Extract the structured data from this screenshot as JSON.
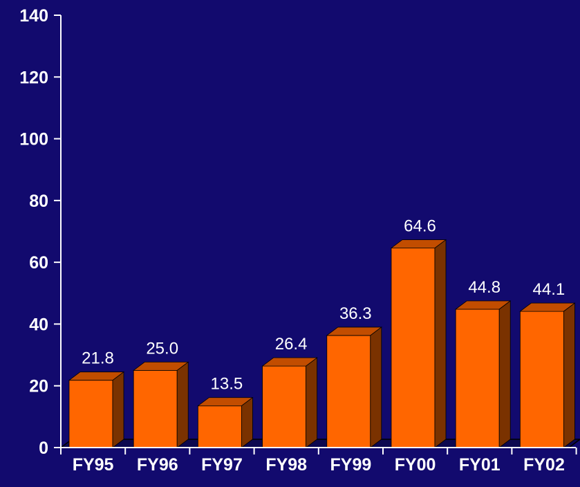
{
  "chart_data": {
    "type": "bar",
    "title": "",
    "xlabel": "",
    "ylabel": "",
    "categories": [
      "FY95",
      "FY96",
      "FY97",
      "FY98",
      "FY99",
      "FY00",
      "FY01",
      "FY02"
    ],
    "values": [
      21.8,
      25.0,
      13.5,
      26.4,
      36.3,
      64.6,
      44.8,
      44.1
    ],
    "value_labels": [
      "21.8",
      "25.0",
      "13.5",
      "26.4",
      "36.3",
      "64.6",
      "44.8",
      "44.1"
    ],
    "ylim": [
      0,
      140
    ],
    "yticks": [
      0,
      20,
      40,
      60,
      80,
      100,
      120,
      140
    ],
    "grid": false,
    "legend": "none",
    "style": "3d",
    "colors": {
      "background": "#120a6e",
      "bar_front": "#ff6600",
      "bar_top": "#c24d00",
      "bar_side": "#7a3200",
      "axis": "#ffffff",
      "text": "#ffffff"
    }
  }
}
